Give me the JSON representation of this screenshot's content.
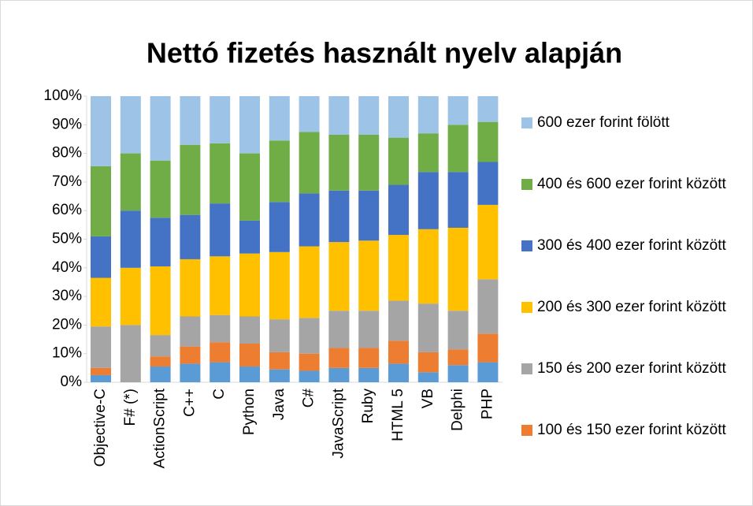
{
  "chart_data": {
    "type": "stacked_bar_100",
    "title": "Nettó fizetés használt nyelv alapján",
    "categories": [
      "Objective-C",
      "F# (*)",
      "ActionScript",
      "C++",
      "C",
      "Python",
      "Java",
      "C#",
      "JavaScript",
      "Ruby",
      "HTML 5",
      "VB",
      "Delphi",
      "PHP"
    ],
    "series": [
      {
        "color": "#5b9bd5",
        "values": [
          2.5,
          0,
          5.5,
          6.5,
          7,
          5.5,
          4.5,
          4,
          5,
          5,
          6.5,
          3.5,
          6,
          7
        ]
      },
      {
        "name": "100 és 150 ezer forint között",
        "color": "#ed7d31",
        "values": [
          2.5,
          0,
          3.5,
          6,
          7,
          8,
          6,
          6,
          7,
          7,
          8,
          7,
          5.5,
          10
        ]
      },
      {
        "name": "150 és 200 ezer forint között",
        "color": "#a5a5a5",
        "values": [
          14.5,
          20,
          7.5,
          10.5,
          9.5,
          9.5,
          11.5,
          12.5,
          13,
          13,
          14,
          17,
          13.5,
          19
        ]
      },
      {
        "name": "200 és 300 ezer forint között",
        "color": "#ffc000",
        "values": [
          17,
          20,
          24,
          20,
          20.5,
          22,
          23.5,
          25,
          24,
          24.5,
          23,
          26,
          29,
          26
        ]
      },
      {
        "name": "300 és 400 ezer forint között",
        "color": "#4472c4",
        "values": [
          14.5,
          20,
          17,
          15.5,
          18.5,
          11.5,
          17.5,
          18.5,
          18,
          17.5,
          17.5,
          20,
          19.5,
          15
        ]
      },
      {
        "name": "400 és 600 ezer forint között",
        "color": "#70ad47",
        "values": [
          24.5,
          20,
          20,
          24.5,
          21,
          23.5,
          21.5,
          21.5,
          19.5,
          19.5,
          16.5,
          13.5,
          16.5,
          14
        ]
      },
      {
        "name": "600 ezer forint fölött",
        "color": "#9dc3e6",
        "values": [
          24.5,
          20,
          22.5,
          17,
          16.5,
          20,
          15.5,
          12.5,
          13.5,
          13.5,
          14.5,
          13,
          10,
          9
        ]
      }
    ],
    "ylim": [
      0,
      100
    ],
    "yticks": [
      {
        "value": 0,
        "label": "0%"
      },
      {
        "value": 10,
        "label": "10%"
      },
      {
        "value": 20,
        "label": "20%"
      },
      {
        "value": 30,
        "label": "30%"
      },
      {
        "value": 40,
        "label": "40%"
      },
      {
        "value": 50,
        "label": "50%"
      },
      {
        "value": 60,
        "label": "60%"
      },
      {
        "value": 70,
        "label": "70%"
      },
      {
        "value": 80,
        "label": "80%"
      },
      {
        "value": 90,
        "label": "90%"
      },
      {
        "value": 100,
        "label": "100%"
      }
    ],
    "grid": false
  }
}
